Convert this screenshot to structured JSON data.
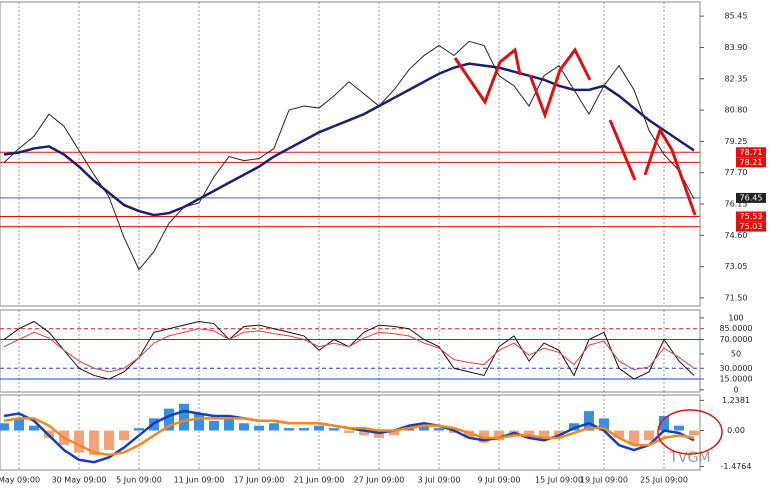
{
  "chart_data": [
    {
      "type": "line",
      "categories": [
        null,
        "May 09:00",
        null,
        null,
        null,
        "30 May 09:00",
        null,
        null,
        null,
        "5 Jun 09:00",
        null,
        null,
        null,
        "11 Jun 09:00",
        null,
        null,
        null,
        "17 Jun 09:00",
        null,
        null,
        null,
        "21 Jun 09:00",
        null,
        null,
        null,
        "27 Jun 09:00",
        null,
        null,
        null,
        "3 Jul 09:00",
        null,
        null,
        null,
        "9 Jul 09:00",
        null,
        null,
        null,
        "15 Jul 09:00",
        null,
        null,
        "19 Jul 09:00",
        null,
        null,
        null,
        "25 Jul 09:00",
        null,
        null
      ],
      "ylim": [
        71.1,
        86.15
      ],
      "yticks": [
        85.45,
        {
          "value": 83.9,
          "label": "83.90"
        },
        82.35,
        {
          "value": 80.8,
          "label": "80.80"
        },
        79.25,
        {
          "value": 77.7,
          "label": "77.70"
        },
        76.15,
        {
          "value": 74.6,
          "label": "74.60"
        },
        73.05,
        {
          "value": 71.5,
          "label": "71.50"
        }
      ],
      "series": [
        {
          "color": "#222222",
          "values": [
            78.2,
            78.9,
            79.5,
            80.6,
            80.0,
            78.8,
            77.6,
            76.5,
            74.5,
            72.9,
            73.8,
            75.2,
            76.0,
            76.2,
            77.5,
            78.5,
            78.3,
            78.4,
            78.9,
            80.8,
            81.0,
            80.9,
            81.5,
            82.2,
            81.6,
            81.0,
            81.8,
            82.8,
            83.5,
            84.0,
            83.5,
            84.2,
            84.0,
            82.5,
            82.0,
            81.0,
            82.5,
            83.0,
            81.8,
            80.6,
            82.0,
            83.0,
            81.8,
            79.8,
            78.6,
            77.8,
            76.4
          ]
        },
        {
          "color": "#1a1f6e",
          "values": [
            78.6,
            78.7,
            78.9,
            79.0,
            78.6,
            78.0,
            77.3,
            76.7,
            76.1,
            75.8,
            75.6,
            75.7,
            76.0,
            76.4,
            76.8,
            77.2,
            77.6,
            78.0,
            78.5,
            78.9,
            79.3,
            79.7,
            80.0,
            80.3,
            80.6,
            81.0,
            81.4,
            81.8,
            82.2,
            82.6,
            82.9,
            83.1,
            83.0,
            82.9,
            82.7,
            82.5,
            82.3,
            82.0,
            81.8,
            81.8,
            82.0,
            81.5,
            80.9,
            80.3,
            79.8,
            79.3,
            78.8
          ]
        }
      ],
      "levels": [
        {
          "value": 78.71,
          "color": "#e01010"
        },
        {
          "value": 78.21,
          "color": "#e01010"
        },
        {
          "value": 76.45,
          "color": "#4060d0"
        },
        {
          "value": 75.53,
          "color": "#e01010"
        },
        {
          "value": 75.03,
          "color": "#e01010"
        }
      ],
      "watermark": "TVGM"
    },
    {
      "type": "line",
      "ylim": [
        -3,
        111
      ],
      "yticks": [
        100,
        {
          "value": 85,
          "label": "85.0000"
        },
        {
          "value": 70,
          "label": "70.0000"
        },
        50,
        {
          "value": 30,
          "label": "30.0000"
        },
        {
          "value": 15,
          "label": "15.0000"
        },
        0
      ],
      "series": [
        {
          "color": "#111111",
          "values": [
            70,
            85,
            95,
            80,
            55,
            30,
            20,
            15,
            25,
            45,
            80,
            85,
            90,
            95,
            92,
            70,
            88,
            90,
            85,
            80,
            75,
            55,
            70,
            60,
            80,
            90,
            88,
            85,
            70,
            60,
            30,
            25,
            20,
            60,
            75,
            40,
            65,
            55,
            20,
            70,
            80,
            30,
            15,
            25,
            70,
            40,
            20
          ]
        },
        {
          "color": "#e04040",
          "values": [
            60,
            70,
            80,
            72,
            55,
            40,
            30,
            25,
            30,
            45,
            65,
            75,
            80,
            85,
            82,
            70,
            80,
            82,
            78,
            75,
            70,
            60,
            65,
            60,
            72,
            80,
            78,
            75,
            65,
            58,
            42,
            38,
            35,
            55,
            65,
            48,
            58,
            52,
            35,
            62,
            68,
            40,
            28,
            32,
            58,
            45,
            30
          ]
        }
      ],
      "levels": [
        {
          "value": 85,
          "color": "#e01010"
        },
        {
          "value": 70,
          "color": "#e01010"
        },
        {
          "value": 30,
          "color": "#2040d0"
        },
        {
          "value": 15,
          "color": "#2040d0"
        }
      ]
    },
    {
      "type": "bar",
      "ylim": [
        -1.62,
        1.46
      ],
      "yticks": [
        1.2381,
        {
          "value": 0,
          "label": "0.00"
        },
        -1.4764
      ],
      "values": [
        0.3,
        0.5,
        0.2,
        -0.3,
        -0.6,
        -0.9,
        -1.0,
        -0.8,
        -0.4,
        0.1,
        0.5,
        0.9,
        1.1,
        0.7,
        0.4,
        0.5,
        0.3,
        0.2,
        0.3,
        0.1,
        0.1,
        0.2,
        0.1,
        -0.1,
        -0.2,
        -0.3,
        -0.2,
        0.1,
        0.2,
        0.1,
        -0.1,
        -0.3,
        -0.5,
        -0.4,
        -0.2,
        -0.3,
        -0.4,
        -0.2,
        0.3,
        0.8,
        0.5,
        -0.3,
        -0.6,
        -0.4,
        0.6,
        0.2,
        -0.2
      ],
      "colors": [
        "#3a8fe0",
        "#f4a27a"
      ],
      "series": [
        {
          "color": "#1a3fb0",
          "values": [
            0.6,
            0.7,
            0.4,
            -0.2,
            -0.8,
            -1.2,
            -1.3,
            -1.1,
            -0.7,
            -0.2,
            0.3,
            0.6,
            0.8,
            0.7,
            0.6,
            0.6,
            0.5,
            0.4,
            0.4,
            0.3,
            0.3,
            0.3,
            0.2,
            0.1,
            0.0,
            -0.1,
            0.0,
            0.2,
            0.3,
            0.2,
            0.0,
            -0.3,
            -0.4,
            -0.3,
            -0.1,
            -0.3,
            -0.4,
            -0.2,
            0.1,
            0.3,
            0.0,
            -0.6,
            -0.8,
            -0.6,
            0.0,
            -0.1,
            -0.4
          ]
        },
        {
          "color": "#f08a20",
          "values": [
            0.4,
            0.5,
            0.5,
            0.2,
            -0.3,
            -0.6,
            -0.9,
            -1.0,
            -0.9,
            -0.6,
            -0.2,
            0.2,
            0.4,
            0.5,
            0.5,
            0.5,
            0.5,
            0.4,
            0.4,
            0.3,
            0.3,
            0.3,
            0.2,
            0.1,
            0.1,
            0.0,
            0.0,
            0.1,
            0.2,
            0.2,
            0.1,
            -0.1,
            -0.3,
            -0.3,
            -0.2,
            -0.2,
            -0.3,
            -0.3,
            -0.1,
            0.1,
            0.1,
            -0.3,
            -0.6,
            -0.6,
            -0.3,
            -0.2,
            -0.3
          ]
        }
      ]
    }
  ]
}
